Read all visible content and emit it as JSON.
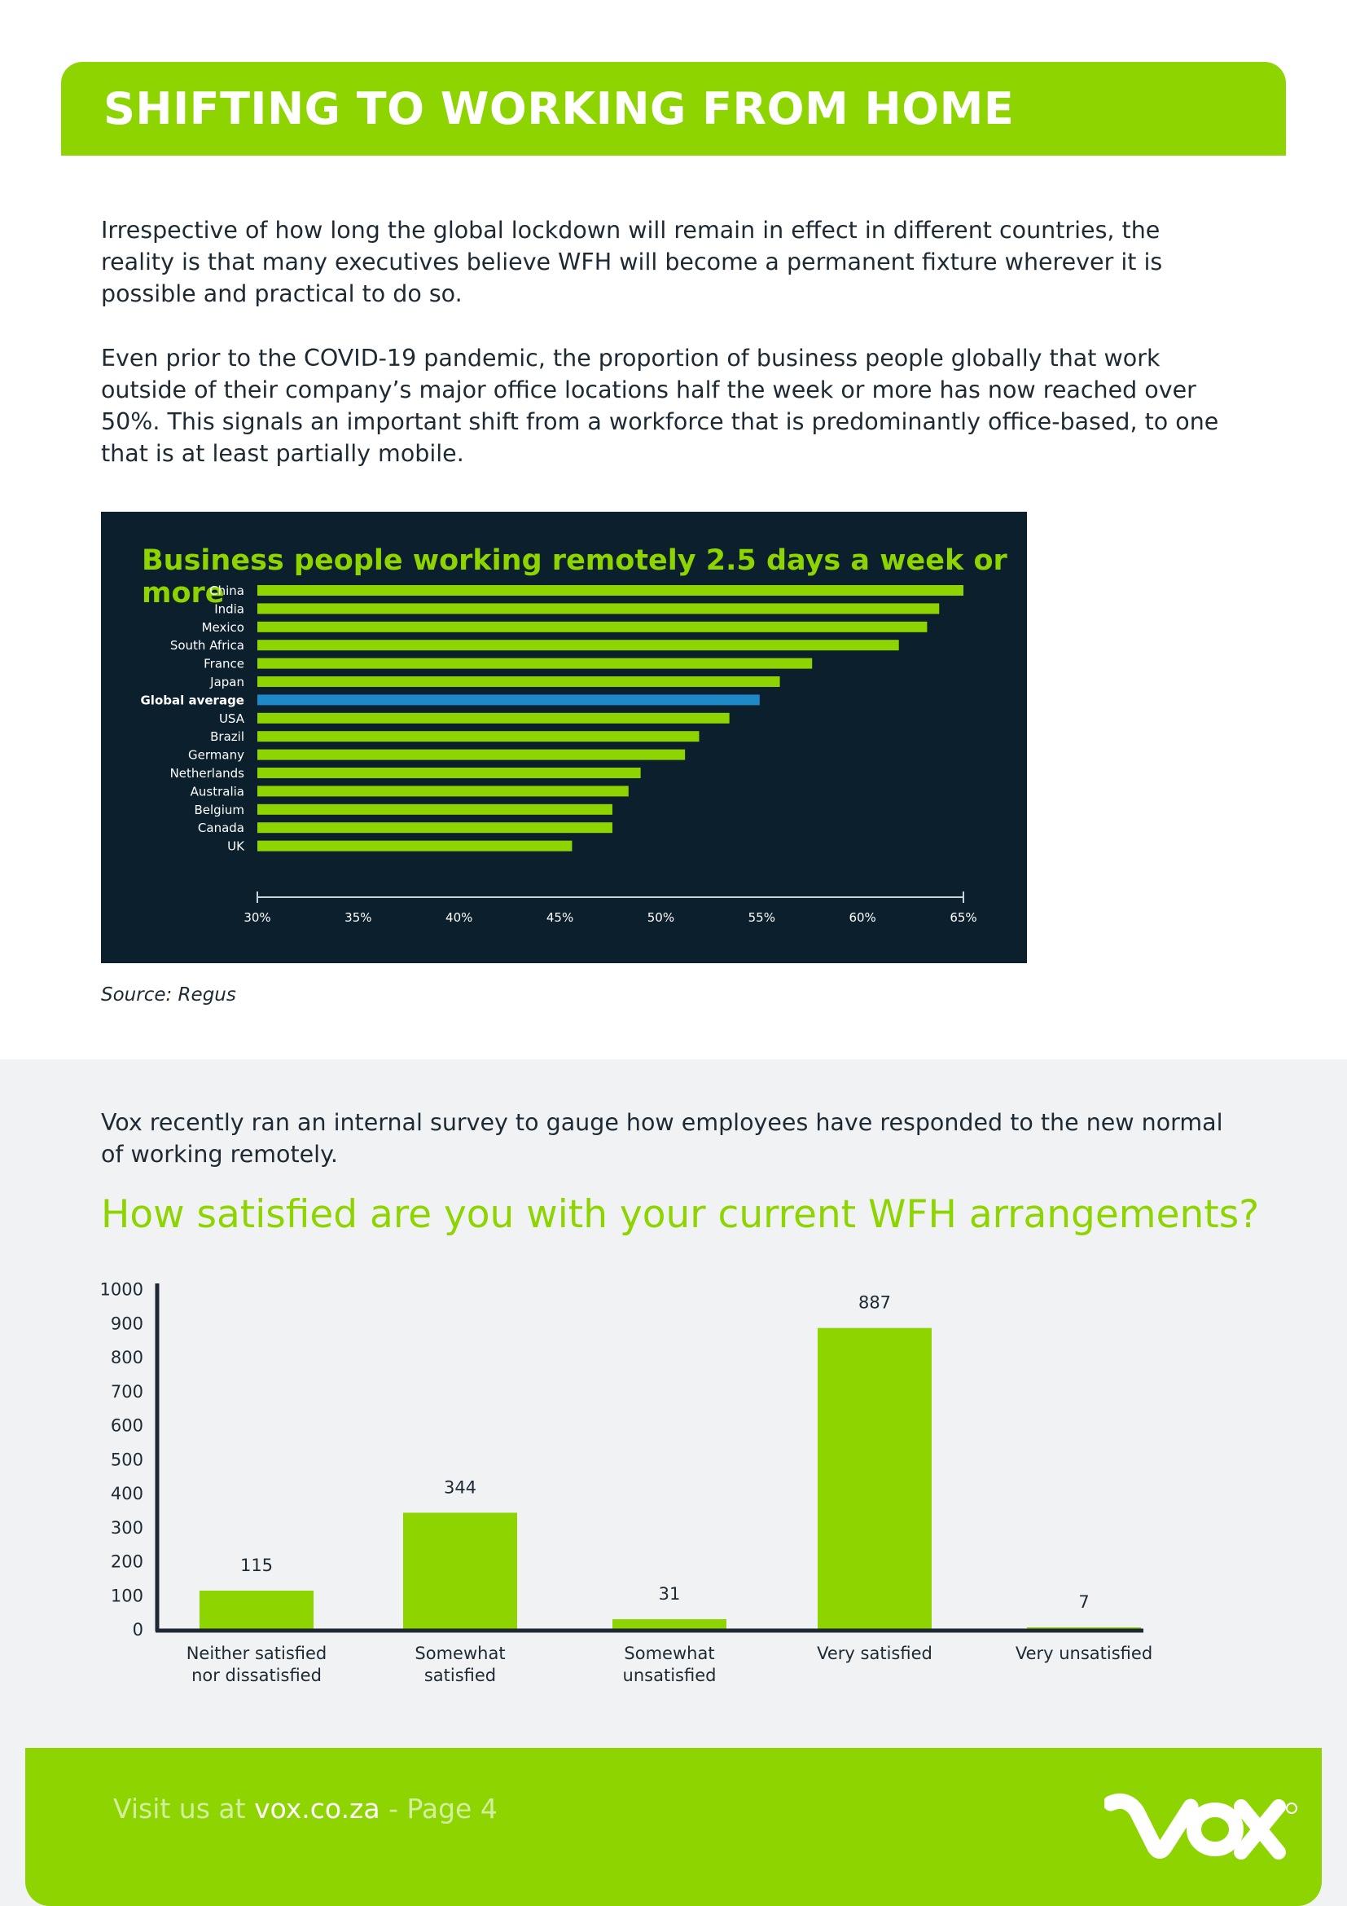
{
  "header": {
    "title": "SHIFTING TO WORKING FROM HOME"
  },
  "intro": {
    "paragraph_1": "Irrespective of how long the global lockdown will remain in effect in different countries, the reality is that many executives believe WFH will become a permanent fixture wherever it is possible and practical to do so.",
    "paragraph_2": "Even prior to the COVID-19 pandemic, the proportion of business people globally that work outside of their company’s major office locations half the week or more has now reached over 50%. This signals an important shift from a workforce that is predominantly office-based, to one that is at least partially mobile."
  },
  "remote_chart": {
    "source": "Source: Regus"
  },
  "survey": {
    "intro": "Vox recently ran an internal survey to gauge how employees have responded to the new normal of working remotely.",
    "question": "How satisfied are you with your current WFH arrangements?"
  },
  "footer": {
    "prefix": "Visit us at ",
    "site": "vox.co.za",
    "suffix": " - Page 4",
    "logo_icon": "vox-logo"
  },
  "colors": {
    "brand_green": "#8dd400",
    "dark_navy": "#0b1f2d",
    "highlight_blue": "#1e88c8",
    "axis_dark": "#1e2a33"
  },
  "chart_data": [
    {
      "type": "bar",
      "orientation": "horizontal",
      "title": "Business people working remotely 2.5 days a week or more",
      "categories": [
        "China",
        "India",
        "Mexico",
        "South Africa",
        "France",
        "Japan",
        "Global average",
        "USA",
        "Brazil",
        "Germany",
        "Netherlands",
        "Australia",
        "Belgium",
        "Canada",
        "UK"
      ],
      "values": [
        65.0,
        63.8,
        63.2,
        61.8,
        57.5,
        55.9,
        54.9,
        53.4,
        51.9,
        51.2,
        49.0,
        48.4,
        47.6,
        47.6,
        45.6
      ],
      "highlight": "Global average",
      "xlim": [
        30,
        65
      ],
      "xticks": [
        "30%",
        "35%",
        "40%",
        "45%",
        "50%",
        "55%",
        "60%",
        "65%"
      ],
      "grid": false,
      "legend": "none"
    },
    {
      "type": "bar",
      "orientation": "vertical",
      "categories": [
        [
          "Neither satisfied",
          "nor dissatisfied"
        ],
        [
          "Somewhat",
          "satisfied"
        ],
        [
          "Somewhat",
          "unsatisfied"
        ],
        [
          "Very satisfied"
        ],
        [
          "Very unsatisfied"
        ]
      ],
      "values": [
        115,
        344,
        31,
        887,
        7
      ],
      "data_labels": [
        "115",
        "344",
        "31",
        "887",
        "7"
      ],
      "ylim": [
        0,
        1000
      ],
      "yticks": [
        "1000",
        "900",
        "800",
        "700",
        "600",
        "500",
        "400",
        "300",
        "200",
        "100",
        "0"
      ],
      "grid": false,
      "legend": "none"
    }
  ]
}
